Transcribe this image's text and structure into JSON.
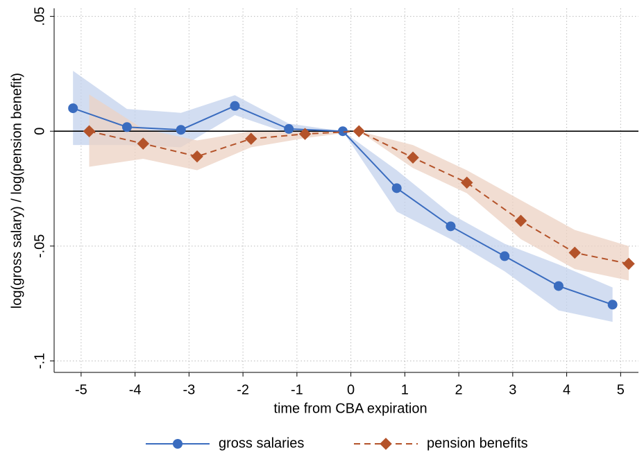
{
  "chart_data": {
    "type": "line",
    "x_label": "time from CBA expiration",
    "y_label": "log(gross salary) / log(pension benefit)",
    "xlim": [
      -5.5,
      5.33
    ],
    "xticks": [
      -5,
      -4,
      -3,
      -2,
      -1,
      0,
      1,
      2,
      3,
      4,
      5
    ],
    "ylim": [
      -0.105,
      0.0535
    ],
    "yticks": [
      {
        "value": -0.1,
        "label": "-.1"
      },
      {
        "value": -0.05,
        "label": "-.05"
      },
      0,
      {
        "value": 0.05,
        "label": ".05"
      }
    ],
    "grid": true,
    "yline": 0,
    "legend": "bottom",
    "series": [
      {
        "name": "gross salaries",
        "color": "#3a6cbf",
        "band_color": "#c3d1ec",
        "marker": "circle",
        "dash": false,
        "x": [
          -5.15,
          -4.15,
          -3.15,
          -2.15,
          -1.15,
          -0.15,
          0.85,
          1.85,
          2.85,
          3.85,
          4.85
        ],
        "values": [
          0.01,
          0.0018,
          0.0006,
          0.011,
          0.001,
          0,
          -0.0248,
          -0.0414,
          -0.0544,
          -0.0674,
          -0.0755
        ],
        "upper": [
          0.0263,
          0.0097,
          0.008,
          0.0157,
          0.0033,
          0,
          -0.017,
          -0.036,
          -0.049,
          -0.058,
          -0.068
        ],
        "lower": [
          -0.006,
          -0.006,
          -0.007,
          0.007,
          -0.001,
          0,
          -0.035,
          -0.047,
          -0.061,
          -0.078,
          -0.083
        ]
      },
      {
        "name": "pension benefits",
        "color": "#b4532a",
        "band_color": "#ecd2c3",
        "marker": "diamond",
        "dash": true,
        "x": [
          -4.85,
          -3.85,
          -2.85,
          -1.85,
          -0.85,
          0.15,
          1.15,
          2.15,
          3.15,
          4.15,
          5.15
        ],
        "values": [
          0,
          -0.0054,
          -0.011,
          -0.0033,
          -0.0012,
          0,
          -0.0115,
          -0.0224,
          -0.039,
          -0.0529,
          -0.0577
        ],
        "upper": [
          0.016,
          0.001,
          -0.004,
          0.0,
          0.0,
          0,
          -0.006,
          -0.017,
          -0.03,
          -0.043,
          -0.05
        ],
        "lower": [
          -0.0155,
          -0.012,
          -0.017,
          -0.007,
          -0.003,
          0,
          -0.016,
          -0.027,
          -0.047,
          -0.06,
          -0.065
        ]
      }
    ]
  }
}
